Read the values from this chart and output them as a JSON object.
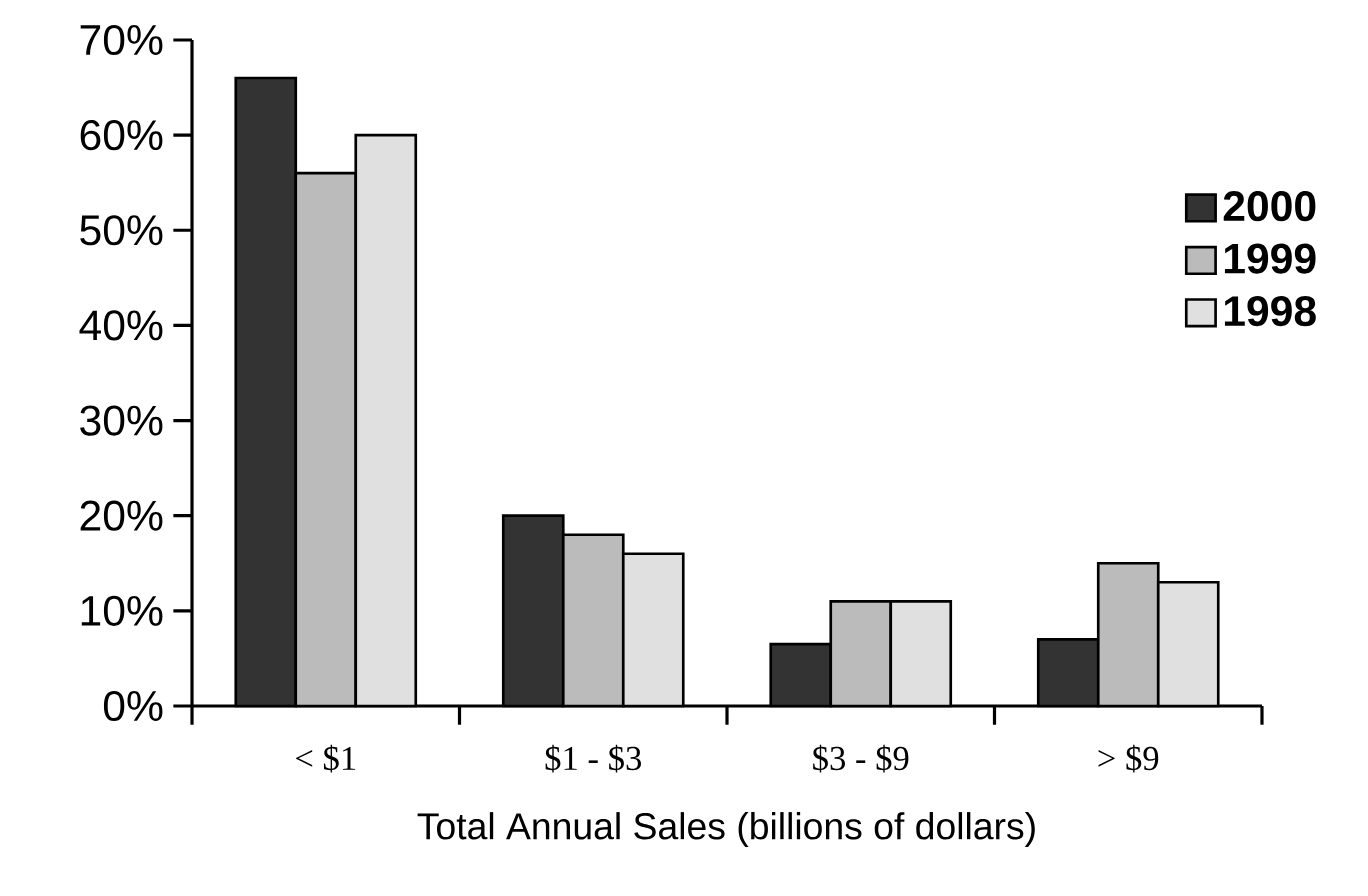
{
  "chart_data": {
    "type": "bar",
    "xlabel": "Total Annual Sales (billions of dollars)",
    "categories": [
      "< $1",
      "$1 - $3",
      "$3 - $9",
      "> $9"
    ],
    "series": [
      {
        "name": "2000",
        "color": "#333333",
        "values": [
          66,
          20,
          6.5,
          7
        ]
      },
      {
        "name": "1999",
        "color": "#bbbbbb",
        "values": [
          56,
          18,
          11,
          15
        ]
      },
      {
        "name": "1998",
        "color": "#e0e0e0",
        "values": [
          60,
          16,
          11,
          13
        ]
      }
    ],
    "ylim": [
      0,
      70
    ],
    "yticks": [
      {
        "value": 0,
        "label": "0%"
      },
      {
        "value": 10,
        "label": "10%"
      },
      {
        "value": 20,
        "label": "20%"
      },
      {
        "value": 30,
        "label": "30%"
      },
      {
        "value": 40,
        "label": "40%"
      },
      {
        "value": 50,
        "label": "50%"
      },
      {
        "value": 60,
        "label": "60%"
      },
      {
        "value": 70,
        "label": "70%"
      }
    ],
    "legend": "right",
    "grid": false
  }
}
